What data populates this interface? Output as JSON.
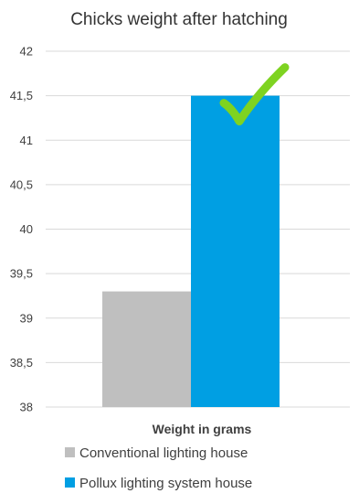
{
  "chart_data": {
    "type": "bar",
    "title": "Chicks weight after hatching",
    "xlabel": "Weight in grams",
    "ylabel": "",
    "categories": [
      "Weight in grams"
    ],
    "series": [
      {
        "name": "Conventional lighting house",
        "values": [
          39.3
        ],
        "color": "#bfbfbf"
      },
      {
        "name": "Pollux lighting system house",
        "values": [
          41.5
        ],
        "color": "#009fe3"
      }
    ],
    "ylim": [
      38,
      42
    ],
    "yticks": [
      38,
      38.5,
      39,
      39.5,
      40,
      40.5,
      41,
      41.5,
      42
    ],
    "ytick_labels": [
      "38",
      "38,5",
      "39",
      "39,5",
      "40",
      "40,5",
      "41",
      "41,5",
      "42"
    ],
    "grid": true,
    "legend_position": "bottom",
    "annotation": {
      "icon": "checkmark-icon",
      "color": "#7ed321",
      "series": "Pollux lighting system house"
    }
  }
}
